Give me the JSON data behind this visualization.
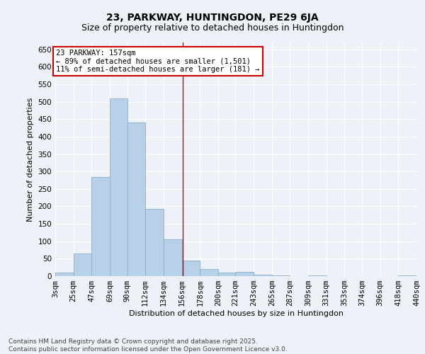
{
  "title": "23, PARKWAY, HUNTINGDON, PE29 6JA",
  "subtitle": "Size of property relative to detached houses in Huntingdon",
  "xlabel": "Distribution of detached houses by size in Huntingdon",
  "ylabel": "Number of detached properties",
  "bar_color": "#b8d0e8",
  "bar_edge_color": "#8ab0d0",
  "background_color": "#eef2f8",
  "grid_color": "#ffffff",
  "vline_color": "#8b1a1a",
  "vline_x": 157,
  "annotation_text": "23 PARKWAY: 157sqm\n← 89% of detached houses are smaller (1,501)\n11% of semi-detached houses are larger (181) →",
  "annotation_box_color": "#ffffff",
  "annotation_box_edge": "#cc0000",
  "bins": [
    3,
    25,
    47,
    69,
    90,
    112,
    134,
    156,
    178,
    200,
    221,
    243,
    265,
    287,
    309,
    331,
    353,
    374,
    396,
    418,
    440
  ],
  "bin_labels": [
    "3sqm",
    "25sqm",
    "47sqm",
    "69sqm",
    "90sqm",
    "112sqm",
    "134sqm",
    "156sqm",
    "178sqm",
    "200sqm",
    "221sqm",
    "243sqm",
    "265sqm",
    "287sqm",
    "309sqm",
    "331sqm",
    "353sqm",
    "374sqm",
    "396sqm",
    "418sqm",
    "440sqm"
  ],
  "values": [
    10,
    65,
    285,
    510,
    440,
    192,
    105,
    45,
    20,
    10,
    12,
    5,
    2,
    0,
    2,
    0,
    0,
    0,
    0,
    3
  ],
  "ylim": [
    0,
    670
  ],
  "yticks": [
    0,
    50,
    100,
    150,
    200,
    250,
    300,
    350,
    400,
    450,
    500,
    550,
    600,
    650
  ],
  "footer_text": "Contains HM Land Registry data © Crown copyright and database right 2025.\nContains public sector information licensed under the Open Government Licence v3.0.",
  "title_fontsize": 10,
  "subtitle_fontsize": 9,
  "label_fontsize": 8,
  "tick_fontsize": 7.5,
  "footer_fontsize": 6.5,
  "annot_fontsize": 7.5
}
